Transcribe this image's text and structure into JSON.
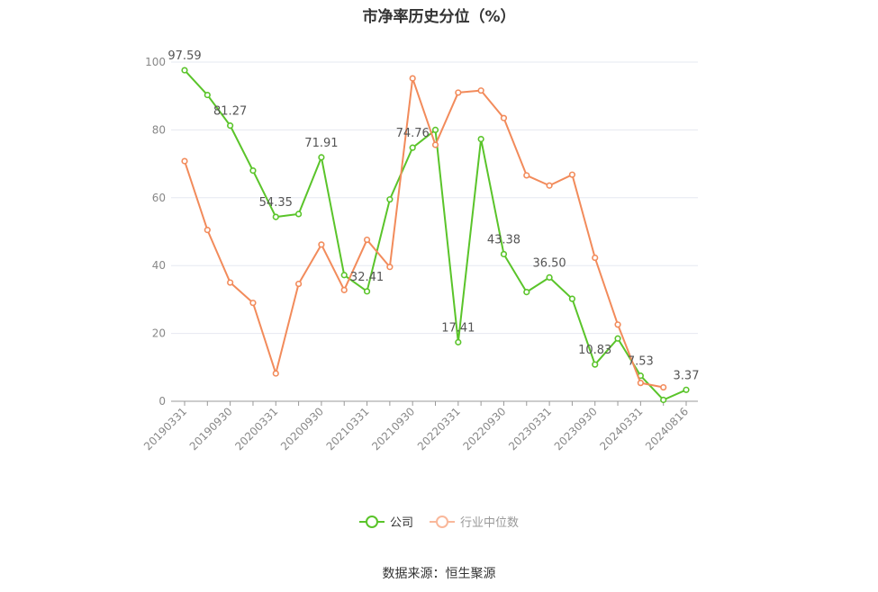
{
  "chart_data": {
    "type": "line",
    "title": "市净率历史分位（%）",
    "x": [
      "20190331",
      "20190630",
      "20190930",
      "20191231",
      "20200331",
      "20200630",
      "20200930",
      "20201231",
      "20210331",
      "20210630",
      "20210930",
      "20211231",
      "20220331",
      "20220630",
      "20220930",
      "20221231",
      "20230331",
      "20230630",
      "20230930",
      "20231231",
      "20240331",
      "20240630",
      "20240816"
    ],
    "x_tick_labels": [
      "20190331",
      "20190930",
      "20200331",
      "20200930",
      "20210331",
      "20210930",
      "20220331",
      "20220930",
      "20230331",
      "20230930",
      "20240331",
      "20240816"
    ],
    "y_ticks": [
      "0",
      "20",
      "40",
      "60",
      "80",
      "100"
    ],
    "ylim": [
      0,
      100
    ],
    "grid": true,
    "legend_position": "bottom-center",
    "series": [
      {
        "name": "公司",
        "color": "#5ac42a",
        "values": [
          97.59,
          90.3,
          81.27,
          68.0,
          54.35,
          55.2,
          71.91,
          37.2,
          32.41,
          59.5,
          74.76,
          80.0,
          17.41,
          77.3,
          43.38,
          32.2,
          36.5,
          30.2,
          10.83,
          18.5,
          7.53,
          0.4,
          3.37
        ],
        "data_labels": [
          {
            "index": 0,
            "text": "97.59"
          },
          {
            "index": 2,
            "text": "81.27"
          },
          {
            "index": 4,
            "text": "54.35"
          },
          {
            "index": 6,
            "text": "71.91"
          },
          {
            "index": 8,
            "text": "32.41"
          },
          {
            "index": 10,
            "text": "74.76"
          },
          {
            "index": 12,
            "text": "17.41"
          },
          {
            "index": 14,
            "text": "43.38"
          },
          {
            "index": 16,
            "text": "36.50"
          },
          {
            "index": 18,
            "text": "10.83"
          },
          {
            "index": 20,
            "text": "7.53"
          },
          {
            "index": 22,
            "text": "3.37"
          }
        ]
      },
      {
        "name": "行业中位数",
        "color": "#f28b5b",
        "values": [
          70.8,
          50.5,
          35.0,
          29.0,
          8.2,
          34.6,
          46.2,
          32.8,
          47.6,
          39.6,
          95.2,
          75.6,
          91.0,
          91.6,
          83.5,
          66.6,
          63.6,
          66.8,
          42.3,
          22.6,
          5.4,
          4.1,
          null
        ]
      }
    ]
  },
  "source": "数据来源：恒生聚源"
}
